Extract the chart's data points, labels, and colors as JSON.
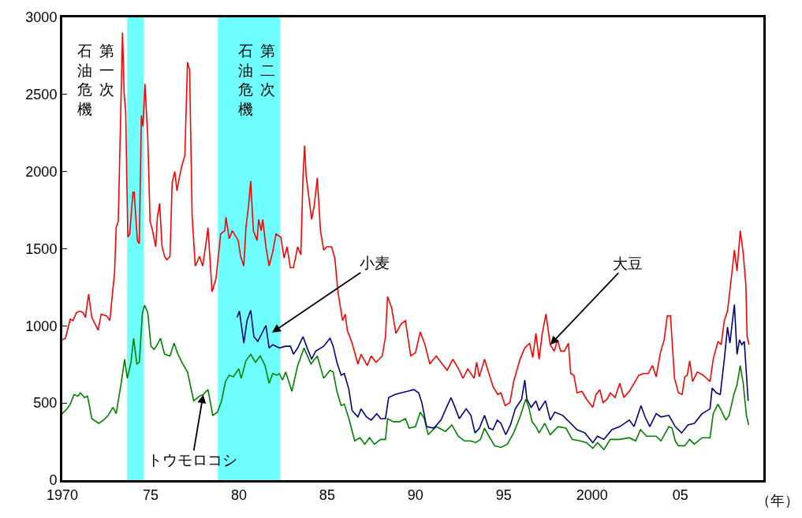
{
  "chart_data": {
    "type": "line",
    "xlabel": "（年）",
    "xlim": [
      1970,
      2009.7
    ],
    "ylim": [
      0,
      3000
    ],
    "xticks": [
      1970,
      {
        "value": 1975,
        "label": "75"
      },
      {
        "value": 1980,
        "label": "80"
      },
      {
        "value": 1985,
        "label": "85"
      },
      {
        "value": 1990,
        "label": "90"
      },
      {
        "value": 1995,
        "label": "95"
      },
      2000,
      {
        "value": 2005,
        "label": "05"
      }
    ],
    "yticks": [
      0,
      500,
      1000,
      1500,
      2000,
      2500,
      3000
    ],
    "grid": false,
    "marker": "none",
    "line_style": "solid",
    "bands": [
      {
        "axis": "x",
        "from": 1973.67,
        "to": 1974.62,
        "label": "第一次石油危機",
        "color": "#70ffff"
      },
      {
        "axis": "x",
        "from": 1978.81,
        "to": 1982.33,
        "label": "第二次石油危機",
        "color": "#70ffff"
      }
    ],
    "annotations": [
      {
        "text": "小麦",
        "x": 1981.88,
        "y": 957
      },
      {
        "text": "大豆",
        "x": 1997.63,
        "y": 878
      },
      {
        "text": "トウモロコシ",
        "x": 1977.98,
        "y": 555
      }
    ],
    "series": [
      {
        "color": "#ff0000",
        "x": [
          1970.0,
          1970.18,
          1970.45,
          1970.6,
          1970.8,
          1970.99,
          1971.17,
          1971.31,
          1971.49,
          1971.67,
          1972.03,
          1972.2,
          1972.51,
          1972.69,
          1972.96,
          1973.05,
          1973.17,
          1973.41,
          1973.5,
          1973.59,
          1973.71,
          1973.82,
          1974.0,
          1974.07,
          1974.25,
          1974.36,
          1974.48,
          1974.57,
          1974.68,
          1974.84,
          1974.97,
          1975.11,
          1975.29,
          1975.38,
          1975.51,
          1975.65,
          1975.79,
          1975.92,
          1976.1,
          1976.22,
          1976.37,
          1976.49,
          1976.64,
          1976.76,
          1976.94,
          1977.09,
          1977.21,
          1977.35,
          1977.53,
          1977.77,
          1977.95,
          1978.16,
          1978.25,
          1978.48,
          1978.7,
          1978.97,
          1979.2,
          1979.27,
          1979.45,
          1979.63,
          1979.96,
          1980.1,
          1980.28,
          1980.4,
          1980.55,
          1980.67,
          1980.82,
          1981.03,
          1981.12,
          1981.26,
          1981.35,
          1981.53,
          1981.71,
          1981.92,
          1982.1,
          1982.37,
          1982.56,
          1982.73,
          1982.91,
          1983.09,
          1983.33,
          1983.51,
          1983.63,
          1983.72,
          1983.81,
          1984.12,
          1984.26,
          1984.44,
          1984.62,
          1984.8,
          1984.98,
          1985.25,
          1985.43,
          1985.61,
          1985.87,
          1986.02,
          1986.14,
          1986.41,
          1986.74,
          1986.92,
          1987.27,
          1987.49,
          1987.76,
          1988.12,
          1988.3,
          1988.42,
          1988.65,
          1988.89,
          1989.19,
          1989.43,
          1989.73,
          1990.0,
          1990.27,
          1990.54,
          1990.81,
          1991.17,
          1991.44,
          1991.79,
          1992.12,
          1992.48,
          1992.69,
          1992.96,
          1993.32,
          1993.46,
          1993.62,
          1993.91,
          1994.13,
          1994.39,
          1994.66,
          1994.84,
          1995.08,
          1995.35,
          1995.56,
          1995.92,
          1996.19,
          1996.46,
          1996.64,
          1996.82,
          1997.0,
          1997.18,
          1997.39,
          1997.63,
          1997.86,
          1998.04,
          1998.22,
          1998.43,
          1998.66,
          1998.79,
          1998.97,
          1999.15,
          1999.42,
          1999.69,
          2000.04,
          2000.22,
          2000.44,
          2000.62,
          2000.85,
          2001.03,
          2001.3,
          2001.57,
          2001.8,
          2002.11,
          2002.38,
          2002.65,
          2002.92,
          2003.18,
          2003.42,
          2003.63,
          2003.87,
          2004.08,
          2004.26,
          2004.44,
          2004.67,
          2004.89,
          2005.1,
          2005.25,
          2005.39,
          2005.53,
          2005.69,
          2005.96,
          2006.29,
          2006.68,
          2006.86,
          2007.13,
          2007.31,
          2007.49,
          2007.67,
          2007.9,
          2008.06,
          2008.21,
          2008.39,
          2008.56,
          2008.71,
          2008.78,
          2008.89
        ],
        "values": [
          909,
          920,
          1044,
          1034,
          1086,
          1096,
          1086,
          1055,
          1205,
          1055,
          972,
          1076,
          1065,
          1034,
          1346,
          1637,
          1679,
          2902,
          2511,
          2386,
          1575,
          1596,
          1866,
          1866,
          1554,
          1533,
          2365,
          2293,
          2569,
          2220,
          1679,
          1617,
          1513,
          1700,
          1793,
          1513,
          1450,
          1429,
          1450,
          1928,
          2001,
          1876,
          1970,
          2033,
          2105,
          2709,
          2657,
          1721,
          1388,
          1450,
          1388,
          1554,
          1637,
          1221,
          1304,
          1596,
          1617,
          1704,
          1565,
          1617,
          1554,
          1450,
          1388,
          1637,
          1783,
          1939,
          1617,
          1554,
          1690,
          1617,
          1690,
          1513,
          1388,
          1481,
          1596,
          1575,
          1440,
          1513,
          1377,
          1377,
          1513,
          1460,
          1970,
          2168,
          1970,
          1690,
          1773,
          1960,
          1617,
          1492,
          1513,
          1513,
          1440,
          1221,
          1034,
          1076,
          972,
          888,
          753,
          816,
          743,
          805,
          764,
          805,
          930,
          1190,
          1117,
          951,
          1013,
          1034,
          805,
          826,
          961,
          878,
          753,
          805,
          764,
          712,
          784,
          712,
          660,
          722,
          660,
          764,
          670,
          784,
          701,
          607,
          555,
          566,
          483,
          503,
          639,
          784,
          857,
          888,
          795,
          951,
          784,
          951,
          1076,
          878,
          836,
          909,
          836,
          836,
          888,
          691,
          680,
          566,
          576,
          524,
          472,
          555,
          587,
          503,
          524,
          566,
          535,
          628,
          535,
          576,
          628,
          680,
          691,
          691,
          743,
          670,
          826,
          909,
          1065,
          1065,
          660,
          566,
          555,
          670,
          680,
          774,
          639,
          701,
          680,
          639,
          784,
          899,
          878,
          1034,
          1096,
          1325,
          1492,
          1356,
          1617,
          1471,
          1263,
          930,
          878
        ]
      },
      {
        "color": "#008000",
        "x": [
          1970.0,
          1970.27,
          1970.45,
          1970.66,
          1970.9,
          1971.02,
          1971.26,
          1971.43,
          1971.67,
          1972.06,
          1972.33,
          1972.6,
          1972.87,
          1973.05,
          1973.32,
          1973.53,
          1973.68,
          1973.89,
          1974.04,
          1974.22,
          1974.36,
          1974.54,
          1974.66,
          1974.84,
          1975.02,
          1975.2,
          1975.38,
          1975.56,
          1975.79,
          1976.1,
          1976.33,
          1976.55,
          1976.82,
          1977.09,
          1977.44,
          1977.77,
          1977.98,
          1978.25,
          1978.52,
          1978.79,
          1979.02,
          1979.24,
          1979.45,
          1979.69,
          1979.99,
          1980.13,
          1980.4,
          1980.67,
          1980.94,
          1981.21,
          1981.48,
          1981.71,
          1981.92,
          1982.14,
          1982.29,
          1982.47,
          1982.65,
          1983.0,
          1983.33,
          1983.69,
          1984.08,
          1984.44,
          1984.8,
          1985.16,
          1985.34,
          1985.55,
          1985.79,
          1985.97,
          1986.23,
          1986.56,
          1986.86,
          1987.13,
          1987.4,
          1987.67,
          1988.03,
          1988.3,
          1988.42,
          1988.75,
          1989.1,
          1989.43,
          1989.64,
          1990.0,
          1990.27,
          1990.5,
          1990.72,
          1991.17,
          1991.7,
          1992.06,
          1992.42,
          1992.78,
          1993.14,
          1993.41,
          1993.68,
          1993.91,
          1994.16,
          1994.48,
          1994.84,
          1995.2,
          1995.56,
          1995.92,
          1996.24,
          1996.42,
          1996.6,
          1996.82,
          1997.0,
          1997.32,
          1997.63,
          1998.07,
          1998.52,
          1998.88,
          1999.33,
          1999.69,
          2000.04,
          2000.31,
          2000.67,
          2001.03,
          2001.57,
          2002.11,
          2002.47,
          2002.74,
          2003.09,
          2003.63,
          2003.9,
          2004.35,
          2004.53,
          2004.71,
          2004.89,
          2005.25,
          2005.52,
          2005.79,
          2006.23,
          2006.68,
          2006.86,
          2007.13,
          2007.36,
          2007.58,
          2007.76,
          2008.03,
          2008.21,
          2008.39,
          2008.56,
          2008.74,
          2008.87
        ],
        "values": [
          431,
          462,
          493,
          555,
          545,
          566,
          535,
          545,
          399,
          368,
          389,
          420,
          472,
          431,
          618,
          784,
          660,
          764,
          920,
          753,
          764,
          1086,
          1134,
          1086,
          868,
          847,
          878,
          920,
          816,
          805,
          888,
          816,
          753,
          701,
          514,
          545,
          555,
          587,
          420,
          441,
          514,
          639,
          680,
          670,
          722,
          660,
          774,
          816,
          764,
          805,
          743,
          628,
          691,
          680,
          691,
          649,
          701,
          576,
          743,
          857,
          753,
          805,
          660,
          712,
          701,
          576,
          483,
          493,
          399,
          254,
          275,
          233,
          275,
          233,
          264,
          264,
          399,
          379,
          379,
          399,
          337,
          347,
          441,
          399,
          295,
          347,
          316,
          358,
          285,
          254,
          254,
          243,
          264,
          337,
          285,
          223,
          212,
          233,
          306,
          410,
          524,
          472,
          379,
          347,
          306,
          368,
          295,
          347,
          337,
          264,
          254,
          243,
          206,
          243,
          198,
          264,
          264,
          275,
          254,
          327,
          285,
          285,
          254,
          347,
          337,
          254,
          223,
          223,
          264,
          233,
          275,
          275,
          431,
          493,
          441,
          389,
          420,
          555,
          618,
          743,
          628,
          420,
          358
        ]
      },
      {
        "color": "#000080",
        "x": [
          1979.9,
          1980.03,
          1980.28,
          1980.46,
          1980.67,
          1980.85,
          1981.07,
          1981.25,
          1981.53,
          1981.71,
          1981.92,
          1982.29,
          1982.65,
          1982.92,
          1983.09,
          1983.33,
          1983.63,
          1983.9,
          1984.12,
          1984.35,
          1984.8,
          1985.16,
          1985.34,
          1985.55,
          1985.79,
          1985.97,
          1986.23,
          1986.41,
          1986.74,
          1986.92,
          1987.22,
          1987.49,
          1987.81,
          1988.03,
          1988.3,
          1988.48,
          1988.83,
          1989.19,
          1989.55,
          1989.91,
          1990.18,
          1990.36,
          1990.63,
          1991.04,
          1991.44,
          1991.76,
          1992.01,
          1992.24,
          1992.48,
          1992.87,
          1993.14,
          1993.37,
          1993.62,
          1993.91,
          1994.16,
          1994.39,
          1994.63,
          1994.84,
          1995.11,
          1995.38,
          1995.65,
          1996.01,
          1996.19,
          1996.31,
          1996.55,
          1996.82,
          1997.0,
          1997.36,
          1997.63,
          1997.89,
          1998.34,
          1998.79,
          1999.15,
          1999.6,
          2000.04,
          2000.31,
          2000.67,
          2001.12,
          2001.57,
          2002.11,
          2002.38,
          2002.77,
          2003.0,
          2003.27,
          2003.63,
          2003.9,
          2004.35,
          2004.71,
          2005.07,
          2005.43,
          2005.79,
          2006.23,
          2006.68,
          2006.8,
          2007.04,
          2007.26,
          2007.49,
          2007.67,
          2007.81,
          2007.94,
          2008.06,
          2008.21,
          2008.35,
          2008.48,
          2008.62,
          2008.84
        ],
        "values": [
          1055,
          1096,
          888,
          1034,
          1101,
          930,
          899,
          940,
          1003,
          857,
          878,
          857,
          868,
          868,
          816,
          857,
          930,
          847,
          784,
          836,
          868,
          920,
          868,
          764,
          680,
          691,
          587,
          451,
          410,
          462,
          410,
          389,
          431,
          399,
          399,
          535,
          555,
          566,
          576,
          587,
          566,
          503,
          347,
          337,
          389,
          472,
          535,
          472,
          399,
          462,
          420,
          306,
          337,
          420,
          337,
          327,
          389,
          368,
          295,
          358,
          462,
          524,
          649,
          524,
          472,
          514,
          451,
          514,
          389,
          441,
          420,
          368,
          327,
          306,
          243,
          285,
          264,
          327,
          347,
          389,
          347,
          483,
          410,
          347,
          431,
          410,
          420,
          347,
          306,
          358,
          368,
          431,
          462,
          597,
          566,
          555,
          784,
          992,
          888,
          1024,
          1138,
          816,
          909,
          878,
          899,
          514
        ]
      }
    ]
  }
}
